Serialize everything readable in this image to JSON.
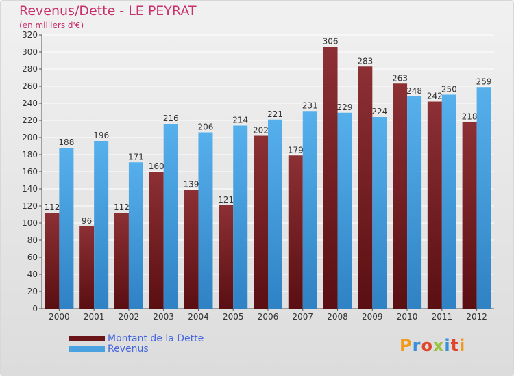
{
  "header": {
    "title": "Revenus/Dette - LE PEYRAT",
    "subtitle": "(en milliers d'€)"
  },
  "colors": {
    "dette": "#7a1f22",
    "revenus": "#4aa3e0",
    "title": "#c8306b",
    "legend_text": "#4466dd"
  },
  "legend": {
    "dette": "Montant de la Dette",
    "revenus": "Revenus"
  },
  "logo": {
    "text": "Proxiti"
  },
  "chart_data": {
    "type": "bar",
    "categories": [
      "2000",
      "2001",
      "2002",
      "2003",
      "2004",
      "2005",
      "2006",
      "2007",
      "2008",
      "2009",
      "2010",
      "2011",
      "2012"
    ],
    "series": [
      {
        "name": "Montant de la Dette",
        "values": [
          112,
          96,
          112,
          160,
          139,
          121,
          202,
          179,
          306,
          283,
          263,
          242,
          218
        ]
      },
      {
        "name": "Revenus",
        "values": [
          188,
          196,
          171,
          216,
          206,
          214,
          221,
          231,
          229,
          224,
          248,
          250,
          259
        ]
      }
    ],
    "ylim": [
      0,
      320
    ],
    "yticks": [
      0,
      20,
      40,
      60,
      80,
      100,
      120,
      140,
      160,
      180,
      200,
      220,
      240,
      260,
      280,
      300,
      320
    ],
    "grid": true,
    "legend_position": "bottom-left"
  }
}
